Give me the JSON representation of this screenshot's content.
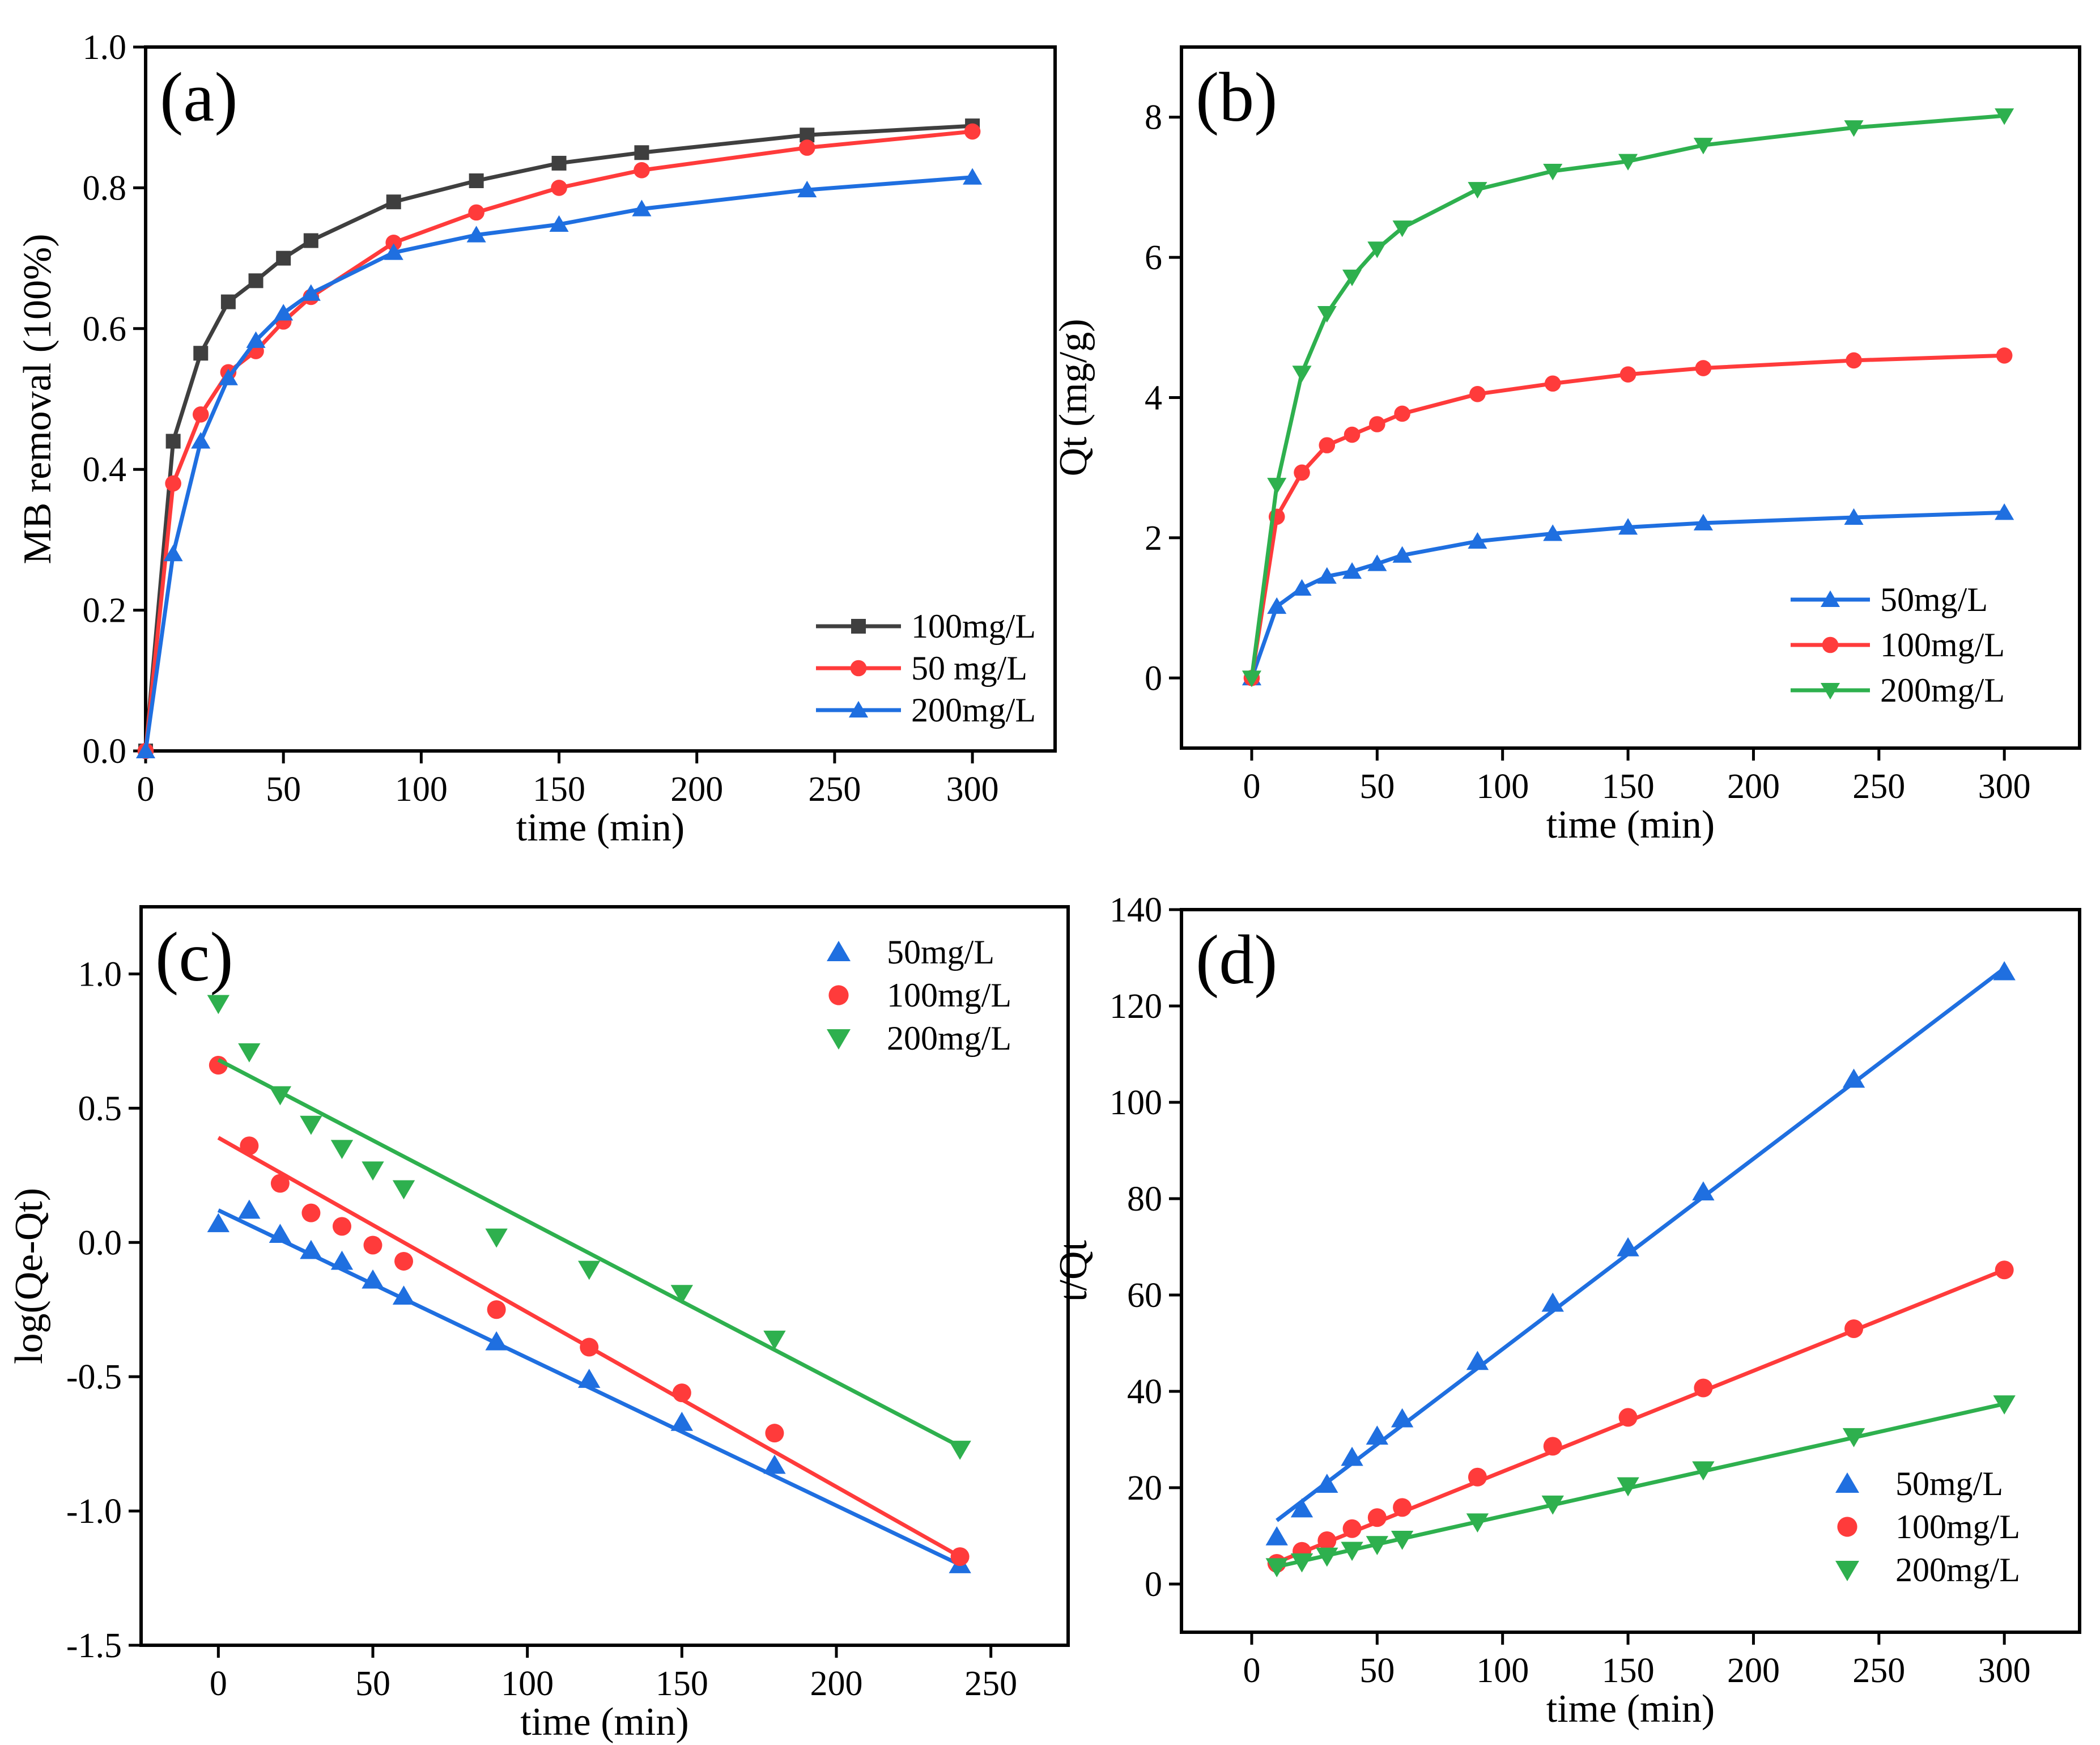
{
  "chart_data": [
    {
      "id": "a",
      "panel_label": "(a)",
      "type": "line",
      "xlabel": "time (min)",
      "ylabel": "MB removal (100%)",
      "xlim": [
        0,
        330
      ],
      "ylim": [
        0,
        1.0
      ],
      "xticks": [
        0,
        50,
        100,
        150,
        200,
        250,
        300
      ],
      "yticks": [
        0.0,
        0.2,
        0.4,
        0.6,
        0.8,
        1.0
      ],
      "ytick_labels": [
        "0.0",
        "0.2",
        "0.4",
        "0.6",
        "0.8",
        "1.0"
      ],
      "legend_position": "bottom-right",
      "series": [
        {
          "name": "100mg/L",
          "color": "#3f3f3f",
          "marker": "square",
          "line": true,
          "x": [
            0,
            10,
            20,
            30,
            40,
            50,
            60,
            90,
            120,
            150,
            180,
            240,
            300
          ],
          "y": [
            0,
            0.44,
            0.565,
            0.638,
            0.668,
            0.7,
            0.725,
            0.78,
            0.81,
            0.835,
            0.85,
            0.875,
            0.888
          ]
        },
        {
          "name": "50 mg/L",
          "color": "#ff3b3b",
          "marker": "circle",
          "line": true,
          "x": [
            0,
            10,
            20,
            30,
            40,
            50,
            60,
            90,
            120,
            150,
            180,
            240,
            300
          ],
          "y": [
            0,
            0.38,
            0.478,
            0.538,
            0.568,
            0.61,
            0.645,
            0.722,
            0.765,
            0.8,
            0.825,
            0.857,
            0.88
          ]
        },
        {
          "name": "200mg/L",
          "color": "#1f6fe0",
          "marker": "triangle-up",
          "line": true,
          "x": [
            0,
            10,
            20,
            30,
            40,
            50,
            60,
            90,
            120,
            150,
            180,
            240,
            300
          ],
          "y": [
            0,
            0.28,
            0.44,
            0.53,
            0.583,
            0.622,
            0.65,
            0.708,
            0.733,
            0.748,
            0.77,
            0.797,
            0.815
          ]
        }
      ]
    },
    {
      "id": "b",
      "panel_label": "(b)",
      "type": "line",
      "xlabel": "time (min)",
      "ylabel": "Qt (mg/g)",
      "xlim": [
        -28,
        330
      ],
      "ylim": [
        -1,
        9
      ],
      "xticks": [
        0,
        50,
        100,
        150,
        200,
        250,
        300
      ],
      "yticks": [
        0,
        2,
        4,
        6,
        8
      ],
      "ytick_labels": [
        "0",
        "2",
        "4",
        "6",
        "8"
      ],
      "legend_position": "bottom-right",
      "series": [
        {
          "name": "50mg/L",
          "color": "#1f6fe0",
          "marker": "triangle-up",
          "line": true,
          "x": [
            0,
            10,
            20,
            30,
            40,
            50,
            60,
            90,
            120,
            150,
            180,
            240,
            300
          ],
          "y": [
            0,
            1.02,
            1.28,
            1.45,
            1.52,
            1.63,
            1.75,
            1.95,
            2.06,
            2.15,
            2.21,
            2.29,
            2.36
          ]
        },
        {
          "name": "100mg/L",
          "color": "#ff3b3b",
          "marker": "circle",
          "line": true,
          "x": [
            0,
            10,
            20,
            30,
            40,
            50,
            60,
            90,
            120,
            150,
            180,
            240,
            300
          ],
          "y": [
            0,
            2.3,
            2.93,
            3.32,
            3.47,
            3.62,
            3.77,
            4.05,
            4.2,
            4.33,
            4.42,
            4.53,
            4.6
          ]
        },
        {
          "name": "200mg/L",
          "color": "#2eb04e",
          "marker": "triangle-down",
          "line": true,
          "x": [
            0,
            10,
            20,
            30,
            40,
            50,
            60,
            90,
            120,
            150,
            180,
            240,
            300
          ],
          "y": [
            0,
            2.75,
            4.35,
            5.2,
            5.72,
            6.12,
            6.42,
            6.97,
            7.23,
            7.37,
            7.6,
            7.85,
            8.02
          ]
        }
      ]
    },
    {
      "id": "c",
      "panel_label": "(c)",
      "type": "scatter",
      "xlabel": "time (min)",
      "ylabel": "log(Qe-Qt)",
      "xlim": [
        -25,
        275
      ],
      "ylim": [
        -1.5,
        1.25
      ],
      "xticks": [
        0,
        50,
        100,
        150,
        200,
        250
      ],
      "yticks": [
        -1.5,
        -1.0,
        -0.5,
        0.0,
        0.5,
        1.0
      ],
      "ytick_labels": [
        "-1.5",
        "-1.0",
        "-0.5",
        "0.0",
        "0.5",
        "1.0"
      ],
      "legend_position": "top-right",
      "series": [
        {
          "name": "50mg/L",
          "color": "#1f6fe0",
          "marker": "triangle-up",
          "x": [
            0,
            10,
            20,
            30,
            40,
            50,
            60,
            90,
            120,
            150,
            180,
            240
          ],
          "y": [
            0.07,
            0.12,
            0.03,
            -0.03,
            -0.07,
            -0.14,
            -0.2,
            -0.37,
            -0.51,
            -0.67,
            -0.83,
            -1.2
          ],
          "fit": {
            "x": [
              0,
              240
            ],
            "y": [
              0.12,
              -1.2
            ]
          }
        },
        {
          "name": "100mg/L",
          "color": "#ff3b3b",
          "marker": "circle",
          "x": [
            0,
            10,
            20,
            30,
            40,
            50,
            60,
            90,
            120,
            150,
            180,
            240
          ],
          "y": [
            0.66,
            0.36,
            0.22,
            0.11,
            0.06,
            -0.01,
            -0.07,
            -0.25,
            -0.39,
            -0.56,
            -0.71,
            -1.17
          ],
          "fit": {
            "x": [
              0,
              240
            ],
            "y": [
              0.39,
              -1.17
            ]
          }
        },
        {
          "name": "200mg/L",
          "color": "#2eb04e",
          "marker": "triangle-down",
          "x": [
            0,
            10,
            20,
            30,
            40,
            50,
            60,
            90,
            120,
            150,
            180,
            240
          ],
          "y": [
            0.89,
            0.71,
            0.55,
            0.44,
            0.35,
            0.27,
            0.2,
            0.02,
            -0.1,
            -0.19,
            -0.36,
            -0.77
          ],
          "fit": {
            "x": [
              0,
              240
            ],
            "y": [
              0.68,
              -0.76
            ]
          }
        }
      ]
    },
    {
      "id": "d",
      "panel_label": "(d)",
      "type": "scatter",
      "xlabel": "time (min)",
      "ylabel": "t/Qt",
      "xlim": [
        -28,
        330
      ],
      "ylim": [
        -10,
        140
      ],
      "xticks": [
        0,
        50,
        100,
        150,
        200,
        250,
        300
      ],
      "yticks": [
        0,
        20,
        40,
        60,
        80,
        100,
        120,
        140
      ],
      "ytick_labels": [
        "0",
        "20",
        "40",
        "60",
        "80",
        "100",
        "120",
        "140"
      ],
      "legend_position": "bottom-right",
      "series": [
        {
          "name": "50mg/L",
          "color": "#1f6fe0",
          "marker": "triangle-up",
          "x": [
            10,
            20,
            30,
            40,
            50,
            60,
            90,
            120,
            150,
            180,
            240,
            300
          ],
          "y": [
            9.8,
            15.6,
            20.7,
            26.3,
            30.7,
            34.3,
            46.2,
            58.3,
            69.8,
            81.4,
            104.8,
            127.1
          ],
          "fit": {
            "x": [
              10,
              300
            ],
            "y": [
              13.2,
              127.8
            ]
          }
        },
        {
          "name": "100mg/L",
          "color": "#ff3b3b",
          "marker": "circle",
          "x": [
            10,
            20,
            30,
            40,
            50,
            60,
            90,
            120,
            150,
            180,
            240,
            300
          ],
          "y": [
            4.3,
            6.8,
            9.0,
            11.5,
            13.8,
            15.9,
            22.2,
            28.6,
            34.6,
            40.7,
            53.0,
            65.2
          ],
          "fit": {
            "x": [
              10,
              300
            ],
            "y": [
              4.5,
              65.2
            ]
          }
        },
        {
          "name": "200mg/L",
          "color": "#2eb04e",
          "marker": "triangle-down",
          "x": [
            10,
            20,
            30,
            40,
            50,
            60,
            90,
            120,
            150,
            180,
            240,
            300
          ],
          "y": [
            3.6,
            4.6,
            5.8,
            7.0,
            8.2,
            9.3,
            12.9,
            16.6,
            20.4,
            23.7,
            30.6,
            37.4
          ],
          "fit": {
            "x": [
              10,
              300
            ],
            "y": [
              3.6,
              37.4
            ]
          }
        }
      ]
    }
  ]
}
